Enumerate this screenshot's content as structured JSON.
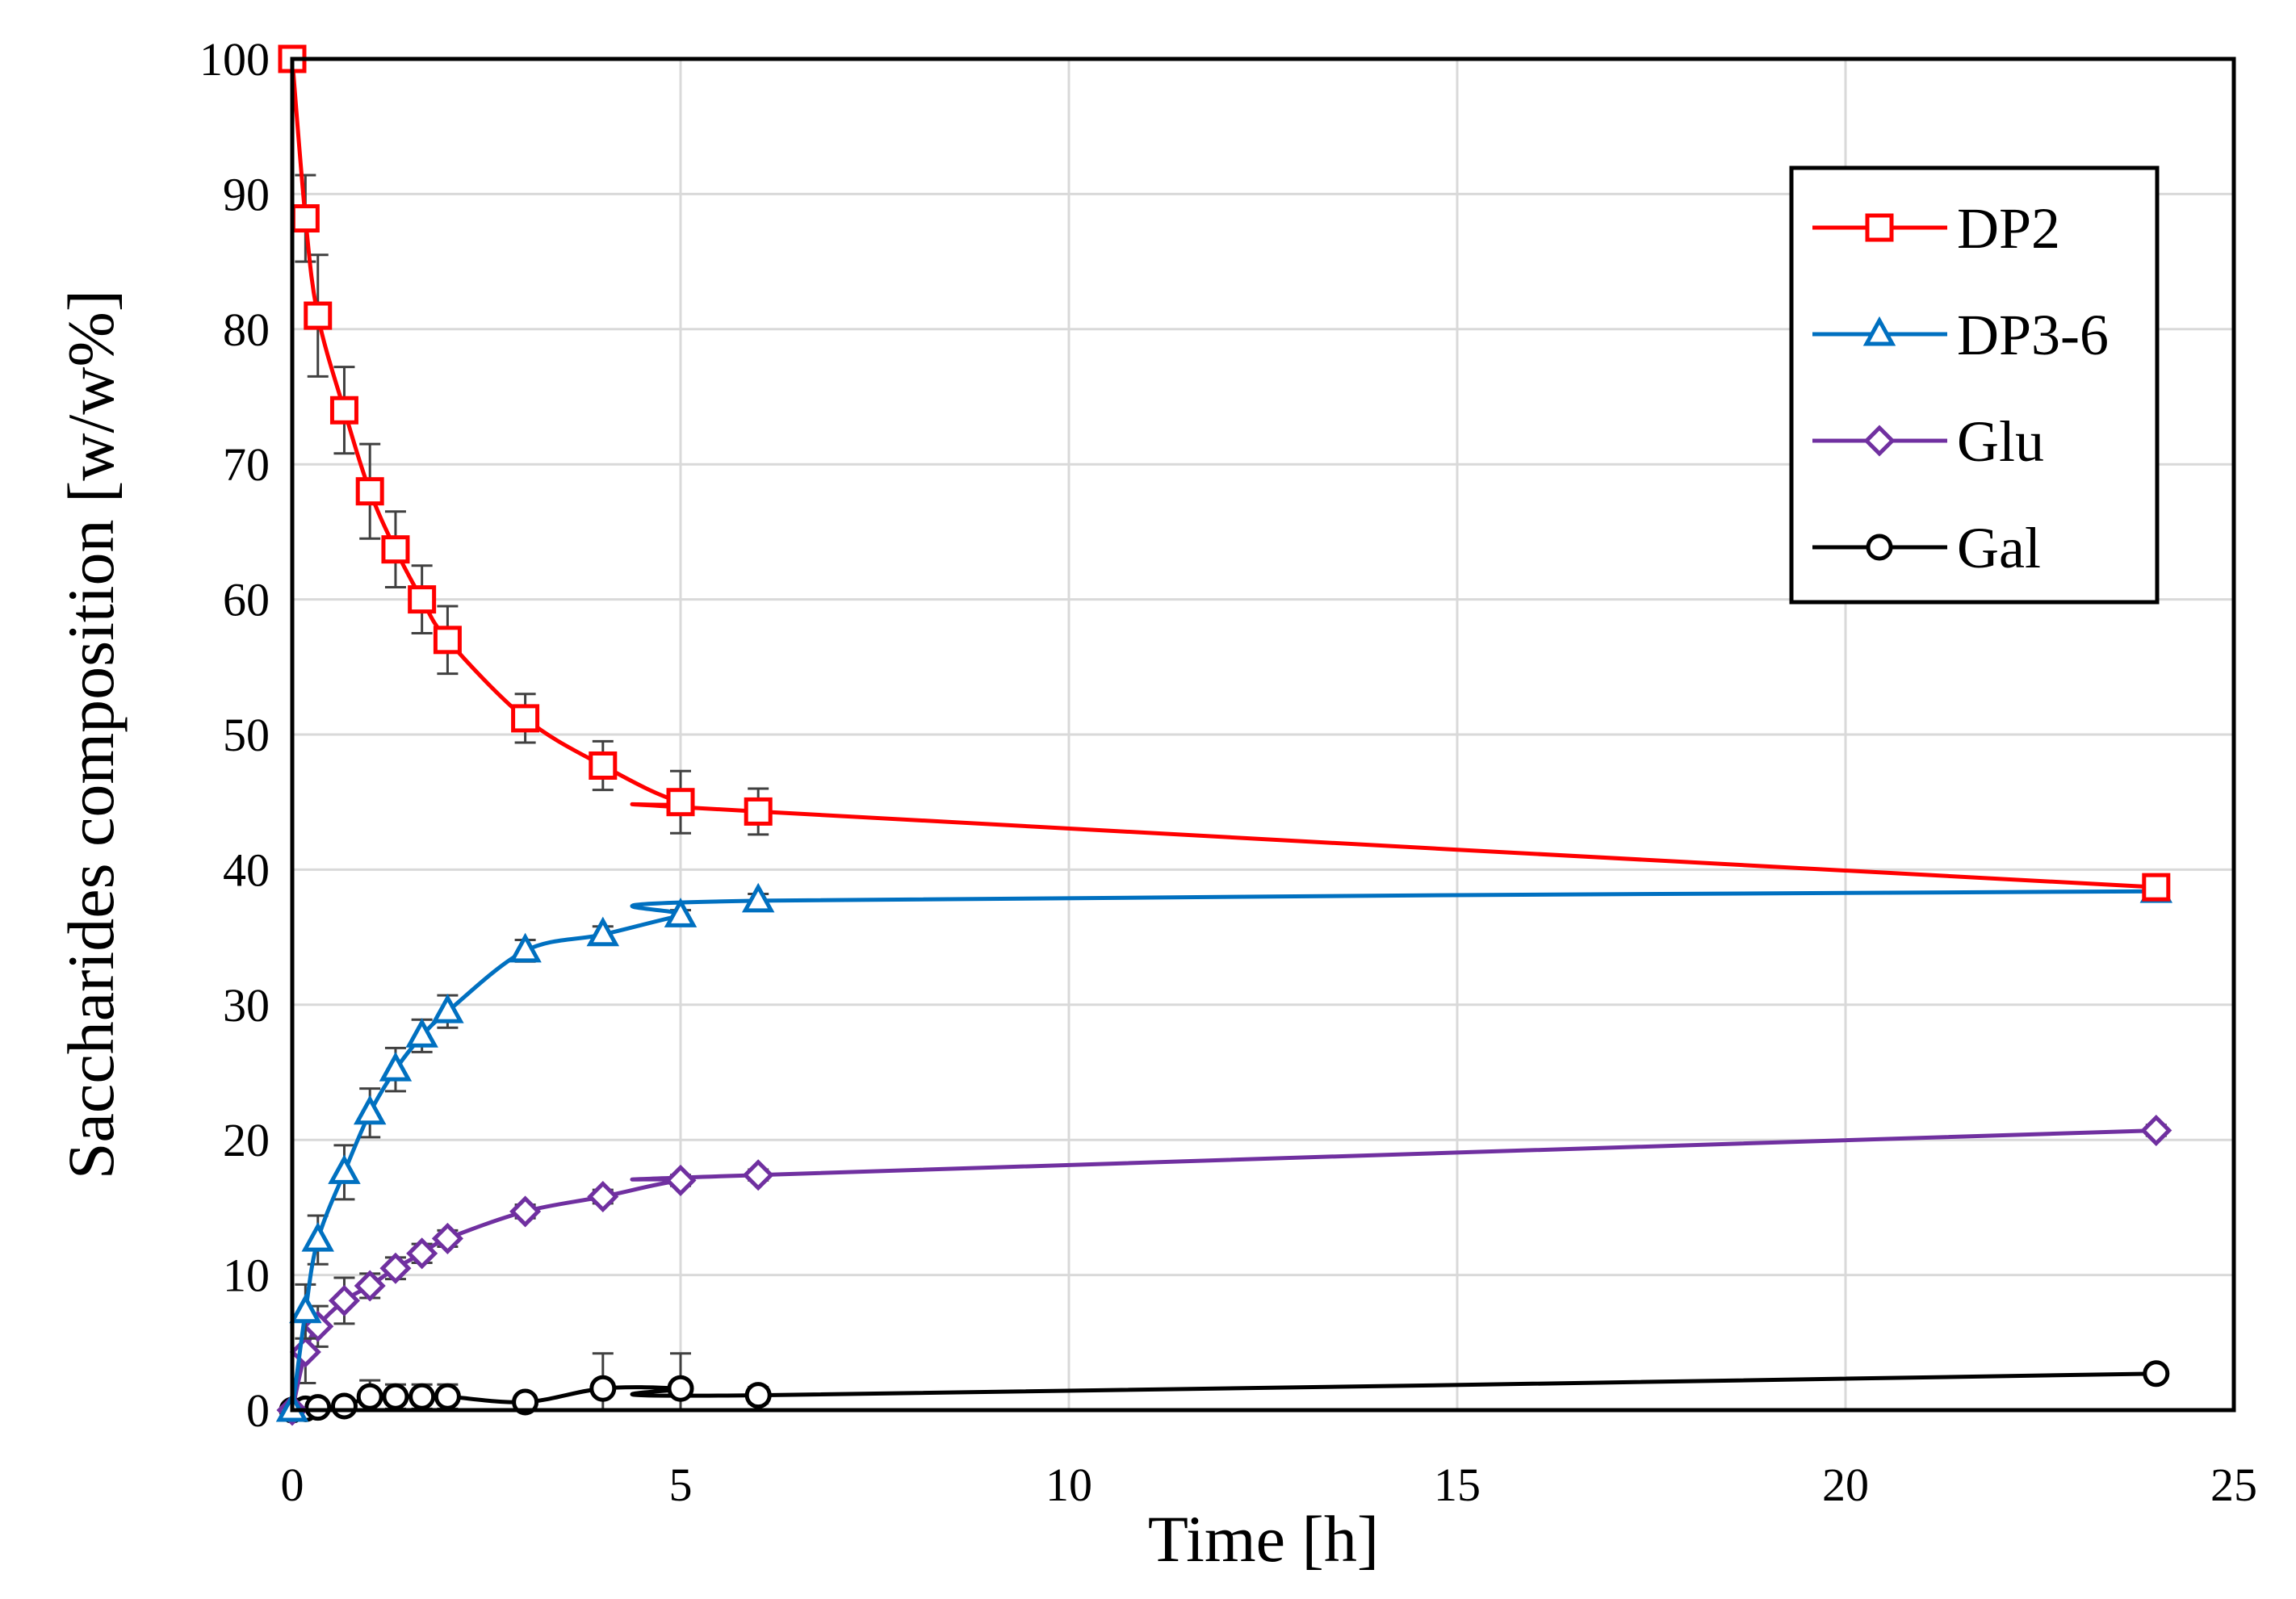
{
  "chart_data": {
    "type": "line",
    "title": "",
    "xlabel": "Time [h]",
    "ylabel": "Saccharides composition [w/w%]",
    "xlim": [
      0,
      25
    ],
    "ylim": [
      0,
      100
    ],
    "xticks": [
      0,
      5,
      10,
      15,
      20,
      25
    ],
    "yticks": [
      0,
      10,
      20,
      30,
      40,
      50,
      60,
      70,
      80,
      90,
      100
    ],
    "grid": true,
    "legend_position": "top-right",
    "series": [
      {
        "name": "DP2",
        "color": "#ff0000",
        "marker": "square",
        "x": [
          0,
          0.17,
          0.33,
          0.67,
          1,
          1.33,
          1.67,
          2,
          3,
          4,
          5,
          6,
          24
        ],
        "y": [
          100,
          88.2,
          81,
          74,
          68,
          63.7,
          60,
          57,
          51.2,
          47.7,
          45,
          44.3,
          38.7
        ],
        "err": [
          0,
          3.2,
          4.5,
          3.2,
          3.5,
          2.8,
          2.5,
          2.5,
          1.8,
          1.8,
          2.3,
          1.7,
          0.3
        ]
      },
      {
        "name": "DP3-6",
        "color": "#0070c0",
        "marker": "triangle",
        "x": [
          0,
          0.17,
          0.33,
          0.67,
          1,
          1.33,
          1.67,
          2,
          3,
          4,
          5,
          6,
          24
        ],
        "y": [
          0,
          7.3,
          12.6,
          17.6,
          22,
          25.2,
          27.7,
          29.5,
          34,
          35.2,
          36.6,
          37.7,
          38.4
        ],
        "err": [
          0,
          2,
          1.8,
          2,
          1.8,
          1.6,
          1.2,
          1.2,
          0.8,
          0.6,
          0.4,
          0.5,
          0.3
        ]
      },
      {
        "name": "Glu",
        "color": "#7030a0",
        "marker": "diamond",
        "x": [
          0,
          0.17,
          0.33,
          0.67,
          1,
          1.33,
          1.67,
          2,
          3,
          4,
          5,
          6,
          24
        ],
        "y": [
          0,
          4.3,
          6.2,
          8.1,
          9.2,
          10.5,
          11.6,
          12.7,
          14.7,
          15.8,
          17,
          17.4,
          20.7
        ],
        "err": [
          0,
          2.3,
          1.5,
          1.7,
          0.9,
          0.8,
          0.7,
          0.6,
          0.5,
          0.5,
          0.4,
          0.4,
          0.4
        ]
      },
      {
        "name": "Gal",
        "color": "#000000",
        "marker": "circle",
        "x": [
          0,
          0.17,
          0.33,
          0.67,
          1,
          1.33,
          1.67,
          2,
          3,
          4,
          5,
          6,
          24
        ],
        "y": [
          0,
          0.1,
          0.2,
          0.3,
          1,
          1,
          1,
          1,
          0.6,
          1.6,
          1.6,
          1.1,
          2.7
        ],
        "err": [
          0,
          0.2,
          0.2,
          0.3,
          1.2,
          0.9,
          0.9,
          0.9,
          0.4,
          2.6,
          2.6,
          0.6,
          0.3
        ]
      }
    ]
  }
}
